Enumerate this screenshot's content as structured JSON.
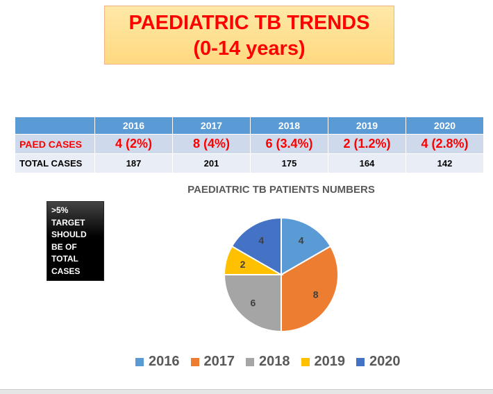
{
  "title": {
    "line1": "PAEDIATRIC TB TRENDS",
    "line2": "(0-14 years)"
  },
  "table": {
    "years": [
      "2016",
      "2017",
      "2018",
      "2019",
      "2020"
    ],
    "paed_label": "PAED CASES",
    "paed": [
      "4 (2%)",
      "8 (4%)",
      "6 (3.4%)",
      "2 (1.2%)",
      "4 (2.8%)"
    ],
    "total_label": "TOTAL CASES",
    "total": [
      "187",
      "201",
      "175",
      "164",
      "142"
    ]
  },
  "note": {
    "lines": [
      ">5%",
      "TARGET",
      "SHOULD",
      "BE OF",
      "TOTAL",
      "CASES"
    ]
  },
  "chart_data": {
    "type": "pie",
    "title": "PAEDIATRIC TB PATIENTS NUMBERS",
    "categories": [
      "2016",
      "2017",
      "2018",
      "2019",
      "2020"
    ],
    "values": [
      4,
      8,
      6,
      2,
      4
    ],
    "labels": [
      "4",
      "8",
      "6",
      "2",
      "4"
    ],
    "colors": [
      "#5B9BD5",
      "#ED7D31",
      "#A5A5A5",
      "#FFC000",
      "#4472C4"
    ],
    "legend": "bottom"
  }
}
